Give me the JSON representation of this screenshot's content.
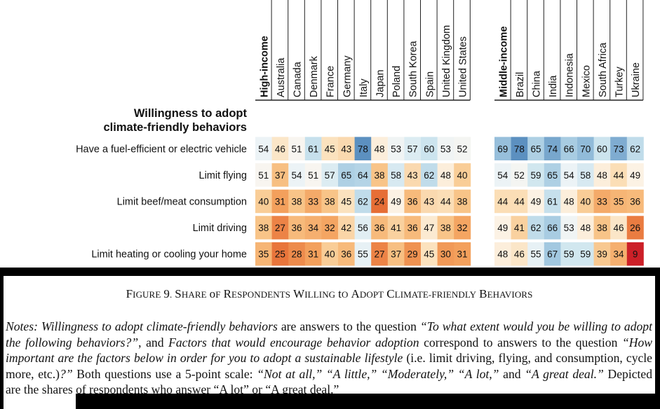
{
  "chart_data": {
    "type": "heatmap",
    "title": "Willingness to adopt climate-friendly behaviors",
    "title_lines": [
      "Willingness to adopt",
      "climate-friendly behaviors"
    ],
    "colormap": "diverging: low = red/orange, mid = white, high = blue",
    "groups": [
      {
        "name": "High-income",
        "countries": [
          "Australia",
          "Canada",
          "Denmark",
          "France",
          "Germany",
          "Italy",
          "Japan",
          "Poland",
          "South Korea",
          "Spain",
          "United Kingdom",
          "United States"
        ]
      },
      {
        "name": "Middle-income",
        "countries": [
          "Brazil",
          "China",
          "India",
          "Indonesia",
          "Mexico",
          "South Africa",
          "Turkey",
          "Ukraine"
        ]
      }
    ],
    "rows": [
      {
        "label": "Have a fuel-efficient or electric vehicle",
        "high_income": 54,
        "high": [
          46,
          51,
          61,
          45,
          43,
          78,
          48,
          53,
          57,
          60,
          53,
          52
        ],
        "middle_income": 69,
        "middle": [
          78,
          65,
          74,
          66,
          70,
          60,
          73,
          62
        ]
      },
      {
        "label": "Limit flying",
        "high_income": 51,
        "high": [
          37,
          54,
          51,
          57,
          65,
          64,
          38,
          58,
          43,
          62,
          48,
          40
        ],
        "middle_income": 54,
        "middle": [
          52,
          59,
          65,
          54,
          58,
          48,
          44,
          49
        ]
      },
      {
        "label": "Limit beef/meat consumption",
        "high_income": 40,
        "high": [
          31,
          38,
          33,
          38,
          45,
          62,
          24,
          49,
          36,
          43,
          44,
          38
        ],
        "middle_income": 44,
        "middle": [
          44,
          49,
          61,
          48,
          40,
          33,
          35,
          36
        ]
      },
      {
        "label": "Limit driving",
        "high_income": 38,
        "high": [
          27,
          36,
          34,
          32,
          42,
          56,
          36,
          41,
          36,
          47,
          38,
          32
        ],
        "middle_income": 49,
        "middle": [
          41,
          62,
          66,
          53,
          48,
          38,
          46,
          26
        ]
      },
      {
        "label": "Limit heating or cooling your home",
        "high_income": 35,
        "high": [
          25,
          28,
          31,
          40,
          36,
          55,
          27,
          37,
          29,
          45,
          30,
          31
        ],
        "middle_income": 48,
        "middle": [
          46,
          55,
          67,
          59,
          59,
          39,
          34,
          9
        ]
      }
    ]
  },
  "caption": {
    "figure_no": "Figure 9.",
    "words": [
      "Share",
      "of",
      "Respondents",
      "Willing",
      "to",
      "Adopt",
      "Climate-Friendly",
      "Behaviors"
    ]
  },
  "notes": {
    "label": "Notes:",
    "term1": "Willingness to adopt climate-friendly behaviors",
    "text1": " are answers to the question ",
    "q1": "“To what extent would you be willing to adopt the following behaviors?”",
    "text2": ", and ",
    "term2": "Factors that would encourage behavior adoption",
    "text3": " correspond to answers to the question ",
    "q2a": "“How important are the factors below in order for you to adopt a sustainable lifestyle ",
    "q2b": "(i.e. limit driving, flying, and consumption, cycle more, etc.)",
    "q2c": "?”",
    "text4": " Both questions use a 5-point scale: ",
    "scale": "“Not at all,” “A lit­tle,” “Moderately,” “A lot,”",
    "text5": " and ",
    "scale_last": "“A great deal.”",
    "text6": " Depicted are the shares of respondents who answer “A lot” or “A great deal.”"
  }
}
